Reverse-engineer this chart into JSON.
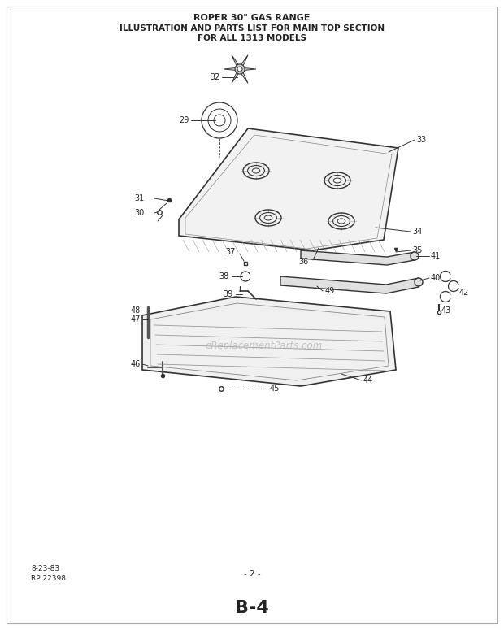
{
  "title_line1": "ROPER 30\" GAS RANGE",
  "title_line2": "ILLUSTRATION AND PARTS LIST FOR MAIN TOP SECTION",
  "title_line3": "FOR ALL 1313 MODELS",
  "footer_left_line1": "8-23-83",
  "footer_left_line2": "RP 22398",
  "footer_center": "- 2 -",
  "footer_bottom": "B-4",
  "watermark": "eReplacementParts.com",
  "bg_color": "#ffffff",
  "line_color": "#333333",
  "text_color": "#222222",
  "watermark_color": "#bbbbbb"
}
